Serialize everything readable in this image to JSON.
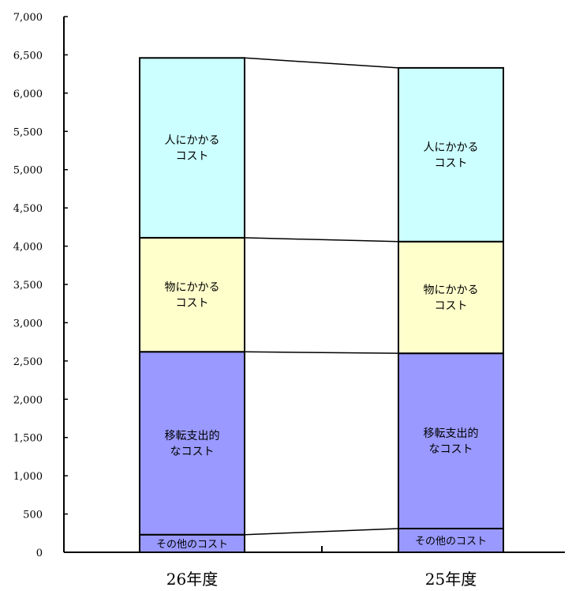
{
  "chart_data": {
    "type": "bar",
    "stacked": true,
    "categories": [
      "26年度",
      "25年度"
    ],
    "ylim": [
      0,
      7000
    ],
    "yticks": [
      0,
      500,
      1000,
      1500,
      2000,
      2500,
      3000,
      3500,
      4000,
      4500,
      5000,
      5500,
      6000,
      6500,
      7000
    ],
    "ytick_labels": [
      "0",
      "500",
      "1,000",
      "1,500",
      "2,000",
      "2,500",
      "3,000",
      "3,500",
      "4,000",
      "4,500",
      "5,000",
      "5,500",
      "6,000",
      "6,500",
      "7,000"
    ],
    "series": [
      {
        "label_lines": [
          "その他のコスト"
        ],
        "color": "#9999ff",
        "values": [
          230,
          310
        ]
      },
      {
        "label_lines": [
          "移転支出的",
          "なコスト"
        ],
        "color": "#9999ff",
        "values": [
          2390,
          2290
        ]
      },
      {
        "label_lines": [
          "物にかかる",
          "コスト"
        ],
        "color": "#ffffcc",
        "values": [
          1490,
          1460
        ]
      },
      {
        "label_lines": [
          "人にかかる",
          "コスト"
        ],
        "color": "#ccffff",
        "values": [
          2350,
          2270
        ]
      }
    ],
    "grid": false,
    "legend": "none",
    "connector_lines": true
  }
}
